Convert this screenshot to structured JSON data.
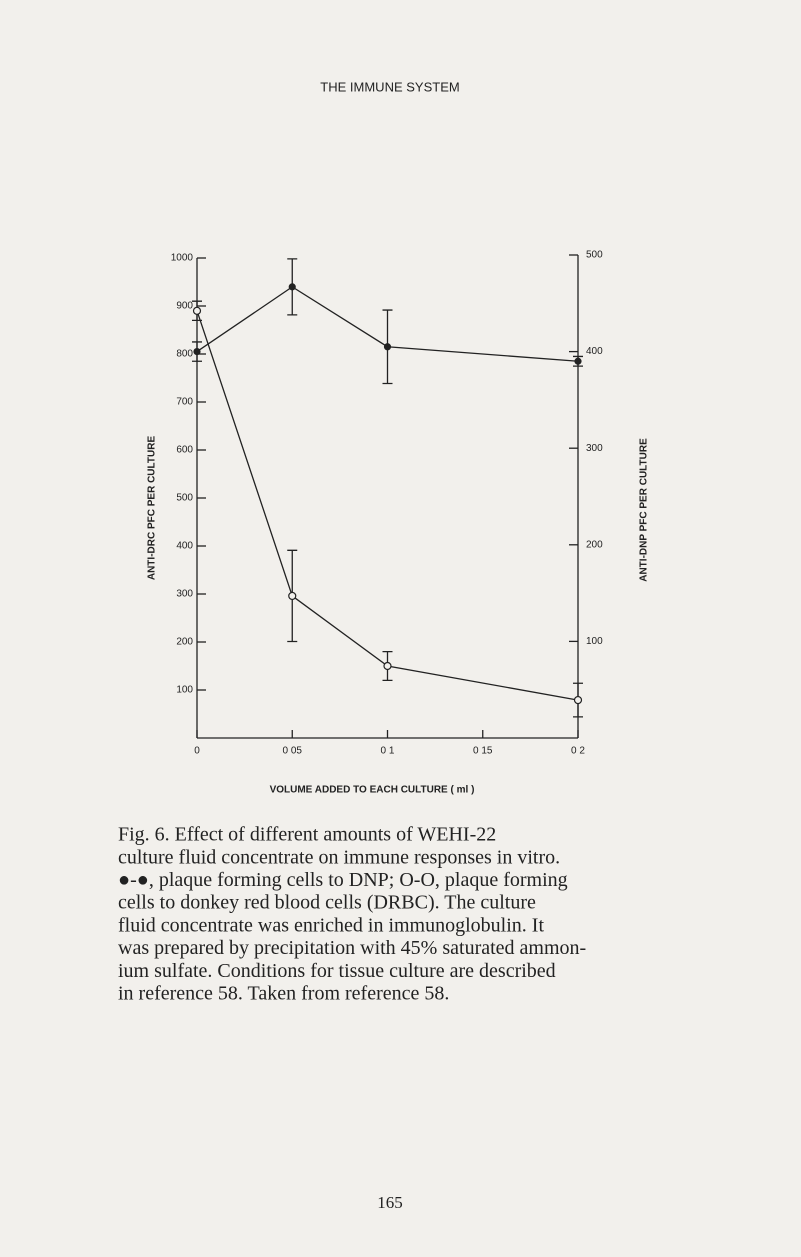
{
  "header": {
    "title": "THE IMMUNE SYSTEM"
  },
  "chart_data": {
    "type": "line",
    "x_label": "VOLUME ADDED TO EACH CULTURE ( ml )",
    "y_label": "ANTI-DRC PFC PER CULTURE",
    "y2_label": "ANTI-DNP PFC PER CULTURE",
    "x": [
      0,
      0.05,
      0.1,
      0.2
    ],
    "xlim": [
      0,
      0.2
    ],
    "xticks": [
      0,
      {
        "value": 0.05,
        "label": "0 05"
      },
      {
        "value": 0.1,
        "label": "0 1"
      },
      {
        "value": 0.15,
        "label": "0 15"
      },
      {
        "value": 0.2,
        "label": "0 2"
      }
    ],
    "ylim": [
      0,
      1000
    ],
    "yticks": [
      100,
      200,
      300,
      400,
      500,
      600,
      700,
      800,
      900,
      1000
    ],
    "y2lim": [
      0,
      500
    ],
    "y2ticks": [
      100,
      200,
      300,
      400,
      500
    ],
    "series": [
      {
        "color": "#222222",
        "marker": "open",
        "values": [
          890,
          296,
          150,
          79
        ],
        "errors": [
          20,
          95,
          30,
          35
        ]
      },
      {
        "color": "#222222",
        "marker": "filled",
        "axis": "y2",
        "values": [
          400,
          467,
          405,
          390
        ],
        "errors": [
          10,
          29,
          38,
          5
        ]
      }
    ]
  },
  "caption": {
    "lines": [
      "Fig. 6. Effect of different amounts of WEHI-22",
      "culture fluid concentrate on immune responses in vitro.",
      "●-●, plaque forming cells to DNP; O-O, plaque forming",
      "cells to donkey red blood cells (DRBC). The culture",
      "fluid concentrate was enriched in immunoglobulin. It",
      "was prepared by precipitation with 45% saturated ammon-",
      "ium sulfate. Conditions for tissue culture are described",
      "in reference 58. Taken from reference 58."
    ]
  },
  "page_number": "165"
}
